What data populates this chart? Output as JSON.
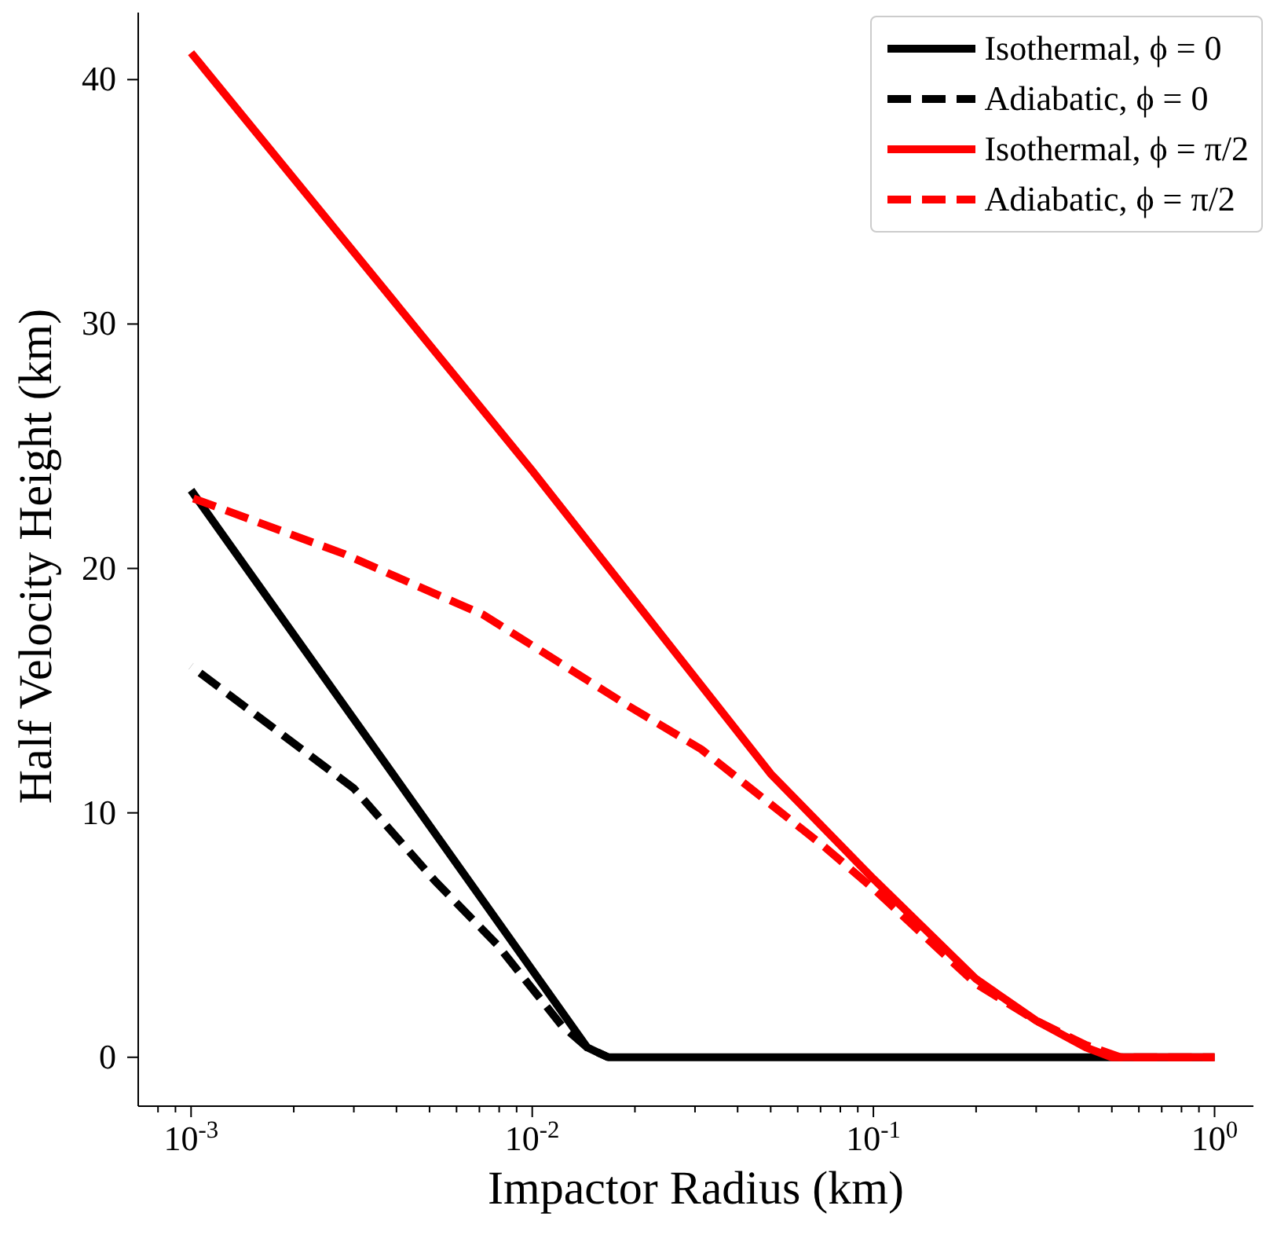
{
  "chart_data": {
    "type": "line",
    "xlabel": "Impactor Radius (km)",
    "ylabel": "Half Velocity Height (km)",
    "log": "x",
    "xlim": [
      0.0007,
      1.3
    ],
    "xticks": [
      {
        "value": 0.0008,
        "label": null
      },
      {
        "value": 0.0009,
        "label": null
      },
      {
        "value": 0.001,
        "label": "10$^{-3}$"
      },
      {
        "value": 0.002,
        "label": null
      },
      {
        "value": 0.003,
        "label": null
      },
      {
        "value": 0.004,
        "label": null
      },
      {
        "value": 0.005,
        "label": null
      },
      {
        "value": 0.006,
        "label": null
      },
      {
        "value": 0.007,
        "label": null
      },
      {
        "value": 0.008,
        "label": null
      },
      {
        "value": 0.009,
        "label": null
      },
      {
        "value": 0.01,
        "label": "10$^{-2}$"
      },
      {
        "value": 0.02,
        "label": null
      },
      {
        "value": 0.03,
        "label": null
      },
      {
        "value": 0.04,
        "label": null
      },
      {
        "value": 0.05,
        "label": null
      },
      {
        "value": 0.06,
        "label": null
      },
      {
        "value": 0.07,
        "label": null
      },
      {
        "value": 0.08,
        "label": null
      },
      {
        "value": 0.09,
        "label": null
      },
      {
        "value": 0.1,
        "label": "10$^{-1}$"
      },
      {
        "value": 0.2,
        "label": null
      },
      {
        "value": 0.3,
        "label": null
      },
      {
        "value": 0.4,
        "label": null
      },
      {
        "value": 0.5,
        "label": null
      },
      {
        "value": 0.6,
        "label": null
      },
      {
        "value": 0.7,
        "label": null
      },
      {
        "value": 0.8,
        "label": null
      },
      {
        "value": 0.9,
        "label": null
      },
      {
        "value": 1,
        "label": "10$^{0}$"
      }
    ],
    "ylim": [
      -2,
      43
    ],
    "yticks": [
      0,
      10,
      20,
      30,
      40
    ],
    "legend": "top right",
    "marker": "none",
    "series": [
      {
        "name": "Isothermal, ϕ = 0",
        "color": "#000000",
        "line_style": "solid",
        "x": [
          0.001,
          0.0145,
          0.0167,
          1
        ],
        "values": [
          23.2,
          0.4,
          0,
          0
        ]
      },
      {
        "name": "Adiabatic, ϕ = 0",
        "color": "#000000",
        "line_style": "dashed",
        "x": [
          0.001,
          0.003,
          0.0052,
          0.0079,
          0.0122,
          0.0145,
          0.0167
        ],
        "values": [
          16.0,
          11.0,
          7.2,
          4.6,
          1.3,
          0.4,
          0
        ]
      },
      {
        "name": "Isothermal, ϕ = π/2",
        "color": "#ff0000",
        "line_style": "solid",
        "x": [
          0.001,
          0.01,
          0.05,
          0.1,
          0.2,
          0.3,
          0.42,
          0.5,
          1
        ],
        "values": [
          41.1,
          24.0,
          11.6,
          7.3,
          3.2,
          1.5,
          0.4,
          0,
          0
        ]
      },
      {
        "name": "Adiabatic, ϕ = π/2",
        "color": "#ff0000",
        "line_style": "dashed",
        "x": [
          0.001,
          0.0028,
          0.0072,
          0.019,
          0.0313,
          0.072,
          0.1,
          0.2,
          0.3,
          0.42,
          0.53,
          1
        ],
        "values": [
          22.9,
          20.6,
          18.1,
          14.4,
          12.6,
          8.6,
          6.9,
          3.0,
          1.5,
          0.5,
          0,
          0
        ]
      }
    ]
  }
}
